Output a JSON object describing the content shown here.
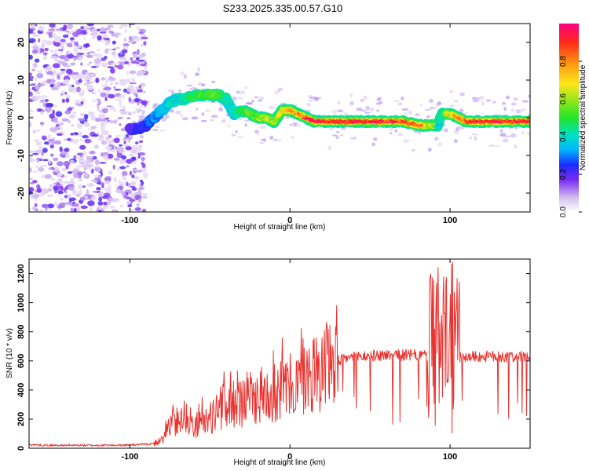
{
  "title": "S233.2025.335.00.57.G10",
  "chart_data": [
    {
      "type": "heatmap",
      "panel": "top",
      "xlabel": "Height of straight line (km)",
      "ylabel": "Frequency (Hz)",
      "xlim": [
        -163,
        150
      ],
      "ylim": [
        -25,
        25
      ],
      "xticks": [
        -100,
        0,
        100
      ],
      "yticks": [
        -20,
        -10,
        0,
        10,
        20
      ],
      "ridge": {
        "x": [
          -100,
          -95,
          -90,
          -85,
          -80,
          -75,
          -70,
          -65,
          -60,
          -55,
          -50,
          -45,
          -40,
          -35,
          -30,
          -25,
          -20,
          -15,
          -10,
          -5,
          0,
          5,
          10,
          15,
          20,
          30,
          40,
          50,
          60,
          70,
          80,
          88,
          92,
          95,
          100,
          110,
          120,
          130,
          140,
          150
        ],
        "y": [
          -3,
          -3,
          -2,
          0,
          2,
          4,
          5,
          5,
          6,
          6,
          6,
          6,
          5,
          1,
          2,
          1,
          0,
          0,
          -1,
          2,
          2,
          1,
          0,
          -1,
          -1,
          -1,
          -1,
          -1,
          -1,
          -1,
          -2,
          -2,
          -2,
          1,
          1,
          -1,
          -1,
          -1,
          -1,
          -1
        ],
        "amplitude": [
          0.2,
          0.25,
          0.25,
          0.3,
          0.35,
          0.4,
          0.4,
          0.45,
          0.5,
          0.5,
          0.55,
          0.5,
          0.4,
          0.4,
          0.5,
          0.55,
          0.6,
          0.65,
          0.6,
          0.7,
          0.75,
          0.8,
          0.85,
          0.9,
          0.95,
          0.95,
          0.95,
          0.95,
          0.9,
          0.9,
          0.8,
          0.6,
          0.4,
          0.5,
          0.7,
          0.9,
          0.95,
          0.95,
          0.95,
          0.95
        ]
      },
      "colorbar": {
        "label": "Normalized spectral amplitude",
        "ticks": [
          0.0,
          0.2,
          0.4,
          0.6,
          0.8
        ],
        "range": [
          0,
          1
        ]
      }
    },
    {
      "type": "line",
      "panel": "bottom",
      "xlabel": "Height of straight line (km)",
      "ylabel": "SNR (10 * v/v)",
      "xlim": [
        -163,
        150
      ],
      "ylim": [
        0,
        1300
      ],
      "xticks": [
        -100,
        0,
        100
      ],
      "yticks": [
        0,
        200,
        400,
        600,
        800,
        1000,
        1200
      ],
      "color": "#e8332f",
      "series": [
        {
          "name": "SNR envelope",
          "x": [
            -163,
            -150,
            -120,
            -100,
            -85,
            -80,
            -75,
            -70,
            -65,
            -60,
            -55,
            -50,
            -45,
            -40,
            -35,
            -30,
            -25,
            -20,
            -15,
            -10,
            -5,
            0,
            5,
            10,
            15,
            20,
            25,
            30,
            35,
            40,
            60,
            80,
            90,
            100,
            110,
            130,
            150
          ],
          "values": [
            25,
            20,
            20,
            22,
            30,
            60,
            150,
            200,
            230,
            150,
            180,
            200,
            260,
            300,
            300,
            320,
            350,
            350,
            380,
            380,
            400,
            420,
            440,
            480,
            520,
            560,
            580,
            600,
            620,
            630,
            640,
            640,
            640,
            630,
            630,
            630,
            630
          ]
        }
      ]
    }
  ]
}
